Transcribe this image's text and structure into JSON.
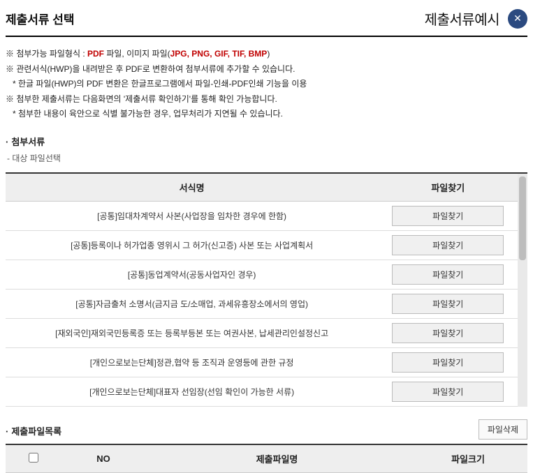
{
  "header": {
    "title": "제출서류 선택",
    "example_title": "제출서류예시"
  },
  "info": {
    "line1_prefix": "※ 첨부가능 파일형식 : ",
    "line1_red1": "PDF",
    "line1_mid": " 파일, 이미지 파일(",
    "line1_red2": "JPG, PNG, GIF, TIF, BMP",
    "line1_suffix": ")",
    "line2": "※ 관련서식(HWP)을 내려받은 후 PDF로 변환하여 첨부서류에 추가할 수 있습니다.",
    "line3": "  * 한글 파일(HWP)의 PDF 변환은 한글프로그램에서 파일-인쇄-PDF인쇄 기능을 이용",
    "line4": "※ 첨부한 제출서류는 다음화면의 '제출서류 확인하기'를 통해 확인 가능합니다.",
    "line5": "  * 첨부한 내용이 육안으로 식별 불가능한 경우, 업무처리가 지연될 수 있습니다."
  },
  "attach": {
    "section_title": "첨부서류",
    "sub_note": "- 대상 파일선택",
    "columns": {
      "form_name": "서식명",
      "file_find": "파일찾기"
    },
    "file_find_label": "파일찾기",
    "rows": [
      {
        "label": "[공통]임대차계약서 사본(사업장을 임차한 경우에 한함)"
      },
      {
        "label": "[공통]등록이나 허가업종 영위시 그 허가(신고증) 사본 또는 사업계획서"
      },
      {
        "label": "[공통]동업계약서(공동사업자인 경우)"
      },
      {
        "label": "[공통]자금출처 소명서(금지금 도/소매업, 과세유흥장소에서의 영업)"
      },
      {
        "label": "[재외국인]재외국민등록증 또는 등록부등본 또는 여권사본, 납세관리인설정신고"
      },
      {
        "label": "[개인으로보는단체]정관,협약 등 조직과 운영등에 관한 규정"
      },
      {
        "label": "[개인으로보는단체]대표자 선임장(선임 확인이 가능한 서류)"
      }
    ]
  },
  "filelist": {
    "section_title": "제출파일목록",
    "delete_label": "파일삭제",
    "columns": {
      "no": "NO",
      "filename": "제출파일명",
      "filesize": "파일크기"
    }
  },
  "style": {
    "accent": "#2b4a80",
    "header_bg": "#eee",
    "border_top": "#333",
    "button_bg": "#f0f0f0",
    "button_border": "#bbb"
  }
}
